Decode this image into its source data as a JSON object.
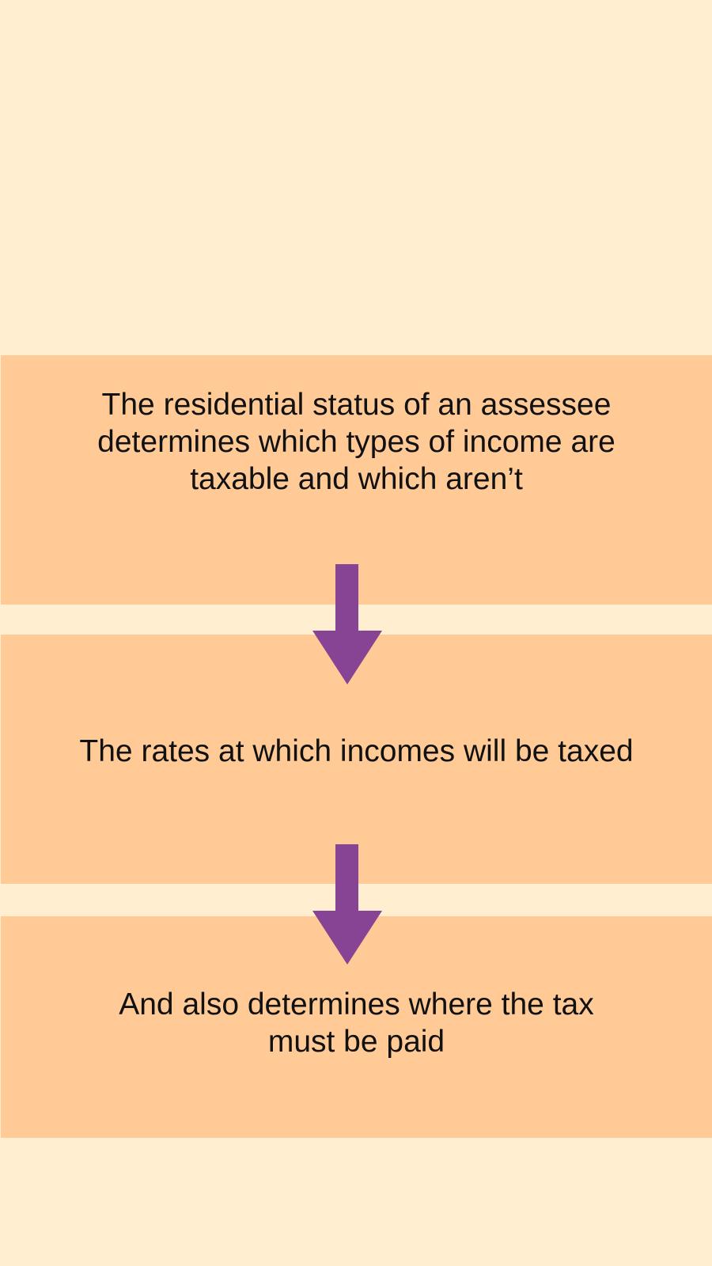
{
  "colors": {
    "background": "#FFEED0",
    "panel": "#FFCA96",
    "arrow": "#874394",
    "text": "#111111"
  },
  "flow": {
    "steps": [
      {
        "text": "The residential status of an assessee\ndetermines which types of income are\ntaxable and  which aren’t"
      },
      {
        "text": "The rates at which incomes will be taxed"
      },
      {
        "text": "And also determines where the tax\nmust be paid"
      }
    ],
    "connectors": [
      {
        "icon": "arrow-down-icon"
      },
      {
        "icon": "arrow-down-icon"
      }
    ]
  }
}
